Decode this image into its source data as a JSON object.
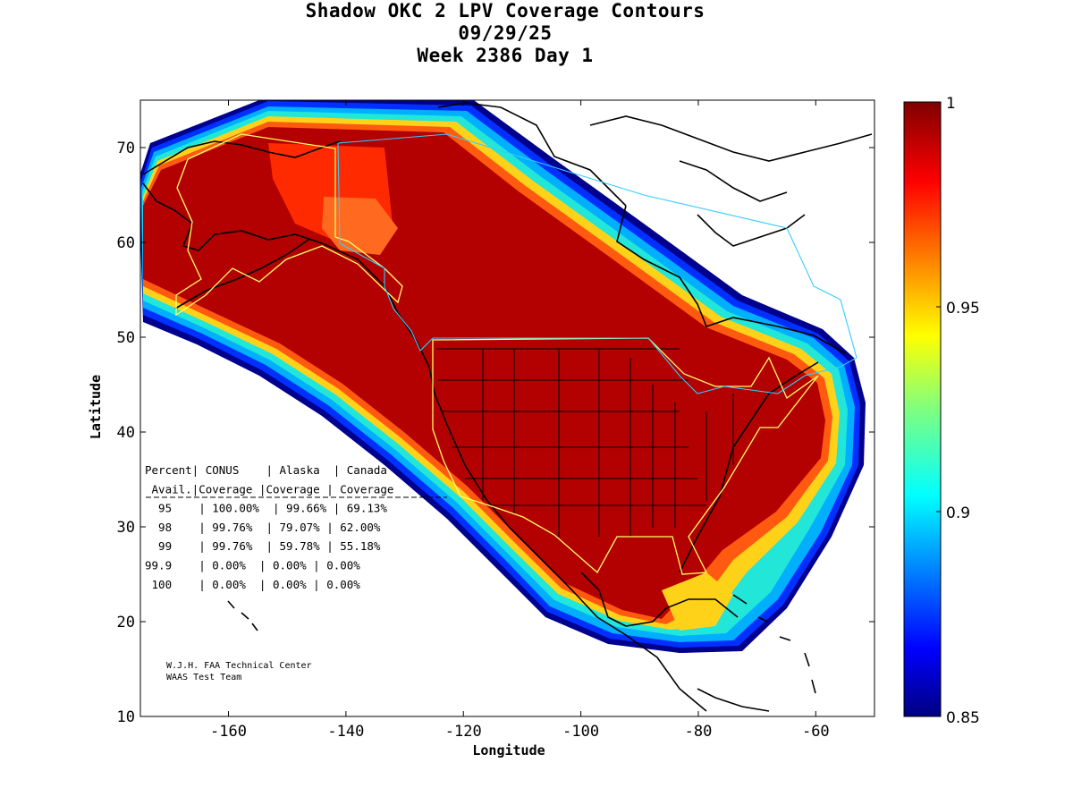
{
  "title": {
    "line1": "Shadow OKC 2 LPV Coverage Contours",
    "line2": "09/29/25",
    "line3": "Week 2386 Day 1"
  },
  "chart_data": {
    "type": "heatmap",
    "map_region": "North America (WAAS service area)",
    "xlabel": "Longitude",
    "ylabel": "Latitude",
    "xlim": [
      -175,
      -50
    ],
    "ylim": [
      10,
      75
    ],
    "x_ticks": [
      -160,
      -140,
      -120,
      -100,
      -80,
      -60
    ],
    "y_ticks": [
      10,
      20,
      30,
      40,
      50,
      60,
      70
    ],
    "colorbar": {
      "range": [
        0.85,
        1
      ],
      "ticks": [
        0.85,
        0.9,
        0.95,
        1
      ],
      "tick_labels": [
        "0.85",
        "0.9",
        "0.95",
        "1"
      ],
      "colormap": "jet"
    },
    "service_areas": [
      "CONUS",
      "Alaska",
      "Canada"
    ],
    "coverage_table": {
      "header1": [
        "Percent",
        "CONUS",
        "Alaska",
        "Canada"
      ],
      "header2": [
        "Avail.",
        "Coverage",
        "Coverage",
        "Coverage"
      ],
      "rows": [
        {
          "percent": "95",
          "conus": "100.00%",
          "alaska": "99.66%",
          "canada": "69.13%"
        },
        {
          "percent": "98",
          "conus": "99.76%",
          "alaska": "79.07%",
          "canada": "62.00%"
        },
        {
          "percent": "99",
          "conus": "99.76%",
          "alaska": "59.78%",
          "canada": "55.18%"
        },
        {
          "percent": "99.9",
          "conus": "0.00%",
          "alaska": "0.00%",
          "canada": "0.00%"
        },
        {
          "percent": "100",
          "conus": "0.00%",
          "alaska": "0.00%",
          "canada": "0.00%"
        }
      ]
    }
  },
  "table_lines": [
    "Percent| CONUS    | Alaska  | Canada",
    " Avail.|Coverage |Coverage | Coverage",
    "  95    | 100.00%  | 99.66% | 69.13%",
    "  98    | 99.76%  | 79.07% | 62.00%",
    "  99    | 99.76%  | 59.78% | 55.18%",
    "99.9    | 0.00%  | 0.00% | 0.00%",
    " 100    | 0.00%  | 0.00% | 0.00%"
  ],
  "credit": {
    "line1": "W.J.H. FAA Technical Center",
    "line2": "WAAS Test Team"
  },
  "colors": {
    "background": "#ffffff",
    "coverage_max": "#b30000",
    "coverage_min": "#000080",
    "coastline": "#000000",
    "conus_alaska_boundary": "#ffff66",
    "canada_boundary": "#33ccff"
  }
}
